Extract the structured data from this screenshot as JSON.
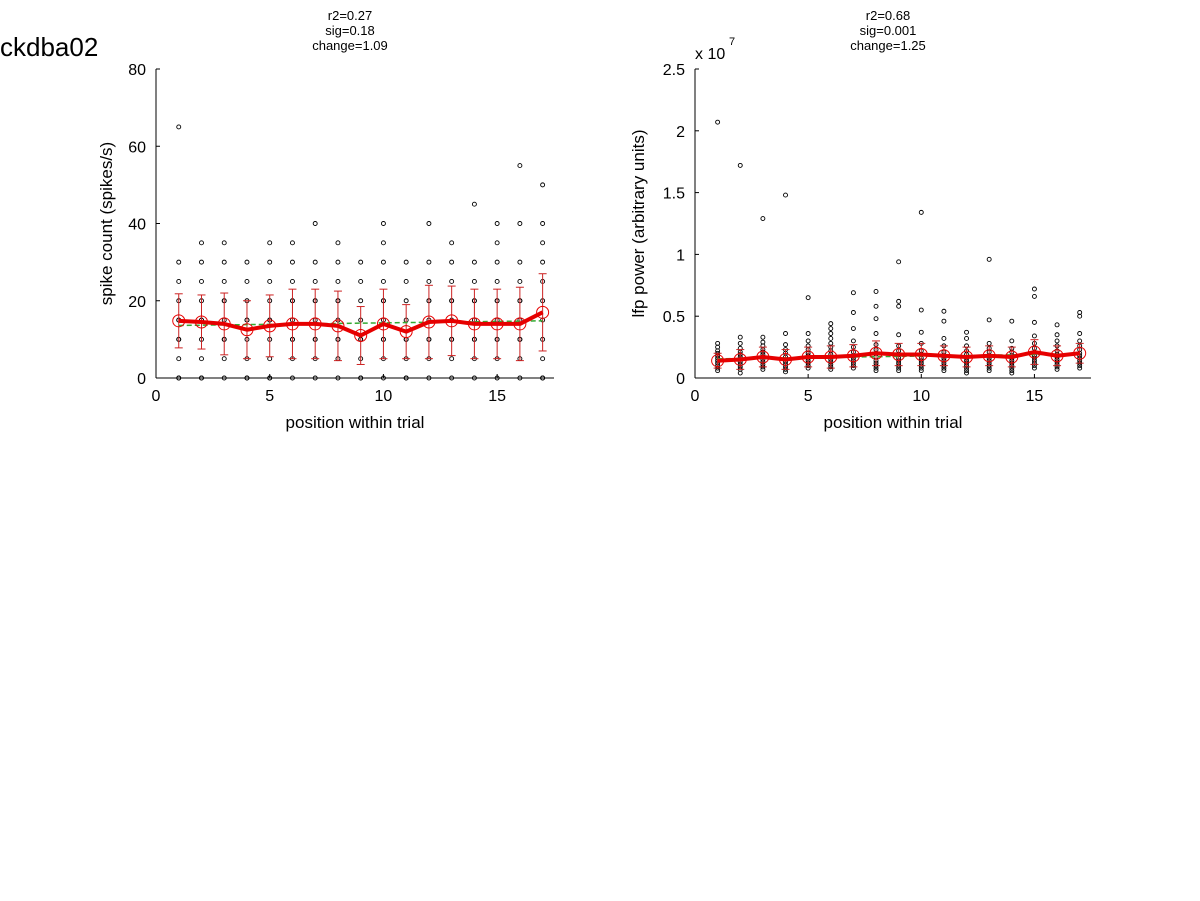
{
  "page_label": "ckdba02",
  "colors": {
    "mean_line": "#e60000",
    "mean_marker": "#e60000",
    "error_bar": "#cc2222",
    "fit_line": "#33aa33",
    "points": "#000000",
    "axis": "#000000"
  },
  "chart_data": [
    {
      "type": "scatter",
      "title_lines": [
        "r2=0.27",
        "sig=0.18",
        "change=1.09"
      ],
      "xlabel": "position within trial",
      "ylabel": "spike count (spikes/s)",
      "xlim": [
        0,
        17.5
      ],
      "ylim": [
        0,
        80
      ],
      "xticks": [
        0,
        5,
        10,
        15
      ],
      "xtick_labels": [
        "0",
        "5",
        "10",
        "15"
      ],
      "yticks": [
        0,
        20,
        40,
        60,
        80
      ],
      "ytick_labels": [
        "0",
        "20",
        "40",
        "60",
        "80"
      ],
      "exponent_label": "",
      "grid": false,
      "mean_series": {
        "x": [
          1,
          2,
          3,
          4,
          5,
          6,
          7,
          8,
          9,
          10,
          11,
          12,
          13,
          14,
          15,
          16,
          17
        ],
        "y": [
          14.8,
          14.5,
          14.0,
          12.5,
          13.5,
          14.0,
          14.0,
          13.5,
          11.0,
          14.0,
          12.0,
          14.5,
          14.8,
          14.0,
          14.0,
          14.0,
          17.0
        ],
        "err": [
          7.0,
          7.0,
          8.0,
          7.5,
          8.0,
          9.0,
          9.0,
          9.0,
          7.5,
          9.0,
          7.0,
          9.5,
          9.0,
          9.0,
          9.0,
          9.5,
          10.0
        ]
      },
      "fit_line": {
        "x": [
          1,
          17
        ],
        "y": [
          13.6,
          14.8
        ]
      },
      "points": {
        "x": [
          1,
          1,
          1,
          1,
          1,
          1,
          1,
          1,
          1,
          1,
          1,
          2,
          2,
          2,
          2,
          2,
          2,
          2,
          2,
          2,
          2,
          3,
          3,
          3,
          3,
          3,
          3,
          3,
          3,
          3,
          3,
          4,
          4,
          4,
          4,
          4,
          4,
          4,
          4,
          4,
          5,
          5,
          5,
          5,
          5,
          5,
          5,
          5,
          5,
          5,
          6,
          6,
          6,
          6,
          6,
          6,
          6,
          6,
          6,
          6,
          7,
          7,
          7,
          7,
          7,
          7,
          7,
          7,
          7,
          7,
          8,
          8,
          8,
          8,
          8,
          8,
          8,
          8,
          8,
          8,
          9,
          9,
          9,
          9,
          9,
          9,
          9,
          9,
          9,
          10,
          10,
          10,
          10,
          10,
          10,
          10,
          10,
          10,
          10,
          10,
          11,
          11,
          11,
          11,
          11,
          11,
          11,
          11,
          11,
          12,
          12,
          12,
          12,
          12,
          12,
          12,
          12,
          12,
          12,
          13,
          13,
          13,
          13,
          13,
          13,
          13,
          13,
          13,
          13,
          14,
          14,
          14,
          14,
          14,
          14,
          14,
          14,
          14,
          14,
          15,
          15,
          15,
          15,
          15,
          15,
          15,
          15,
          15,
          15,
          15,
          16,
          16,
          16,
          16,
          16,
          16,
          16,
          16,
          16,
          16,
          16,
          17,
          17,
          17,
          17,
          17,
          17,
          17,
          17,
          17,
          17,
          17
        ],
        "y": [
          0,
          5,
          10,
          15,
          20,
          25,
          30,
          65,
          0,
          10,
          15,
          0,
          5,
          10,
          15,
          20,
          25,
          30,
          35,
          0,
          15,
          0,
          5,
          10,
          15,
          20,
          25,
          30,
          35,
          10,
          20,
          0,
          5,
          10,
          15,
          20,
          25,
          30,
          0,
          15,
          0,
          5,
          10,
          15,
          20,
          25,
          30,
          35,
          0,
          15,
          0,
          5,
          10,
          15,
          20,
          25,
          30,
          35,
          10,
          20,
          0,
          5,
          10,
          15,
          20,
          25,
          30,
          40,
          10,
          20,
          0,
          5,
          10,
          15,
          20,
          25,
          30,
          35,
          10,
          20,
          0,
          5,
          10,
          15,
          20,
          25,
          30,
          0,
          10,
          0,
          5,
          10,
          15,
          20,
          25,
          30,
          35,
          40,
          10,
          20,
          0,
          5,
          10,
          15,
          20,
          25,
          30,
          0,
          10,
          0,
          5,
          10,
          15,
          20,
          25,
          30,
          40,
          10,
          20,
          0,
          5,
          10,
          15,
          20,
          25,
          30,
          35,
          10,
          20,
          0,
          5,
          10,
          15,
          20,
          25,
          30,
          45,
          10,
          20,
          0,
          5,
          10,
          15,
          20,
          25,
          30,
          35,
          40,
          10,
          20,
          0,
          5,
          10,
          15,
          20,
          25,
          30,
          40,
          55,
          10,
          20,
          0,
          5,
          10,
          15,
          20,
          25,
          30,
          35,
          40,
          50,
          0
        ]
      }
    },
    {
      "type": "scatter",
      "title_lines": [
        "r2=0.68",
        "sig=0.001",
        "change=1.25"
      ],
      "xlabel": "position within trial",
      "ylabel": "lfp power (arbitrary units)",
      "xlim": [
        0,
        17.5
      ],
      "ylim": [
        0,
        2.5
      ],
      "xticks": [
        0,
        5,
        10,
        15
      ],
      "xtick_labels": [
        "0",
        "5",
        "10",
        "15"
      ],
      "yticks": [
        0,
        0.5,
        1,
        1.5,
        2,
        2.5
      ],
      "ytick_labels": [
        "0",
        "0.5",
        "1",
        "1.5",
        "2",
        "2.5"
      ],
      "exponent_label": "x 10",
      "exponent_power": "7",
      "grid": false,
      "mean_series": {
        "x": [
          1,
          2,
          3,
          4,
          5,
          6,
          7,
          8,
          9,
          10,
          11,
          12,
          13,
          14,
          15,
          16,
          17
        ],
        "y": [
          0.14,
          0.15,
          0.17,
          0.15,
          0.17,
          0.17,
          0.18,
          0.2,
          0.19,
          0.19,
          0.18,
          0.17,
          0.18,
          0.17,
          0.21,
          0.18,
          0.2
        ],
        "err": [
          0.06,
          0.08,
          0.08,
          0.08,
          0.08,
          0.09,
          0.09,
          0.1,
          0.09,
          0.09,
          0.08,
          0.08,
          0.08,
          0.08,
          0.1,
          0.08,
          0.08
        ]
      },
      "fit_line": {
        "x": [
          1,
          17
        ],
        "y": [
          0.155,
          0.195
        ]
      },
      "points": {
        "x": [
          1,
          1,
          1,
          1,
          1,
          1,
          1,
          1,
          1,
          1,
          1,
          1,
          2,
          2,
          2,
          2,
          2,
          2,
          2,
          2,
          2,
          2,
          2,
          2,
          2,
          3,
          3,
          3,
          3,
          3,
          3,
          3,
          3,
          3,
          3,
          3,
          3,
          3,
          4,
          4,
          4,
          4,
          4,
          4,
          4,
          4,
          4,
          4,
          4,
          4,
          5,
          5,
          5,
          5,
          5,
          5,
          5,
          5,
          5,
          5,
          5,
          5,
          6,
          6,
          6,
          6,
          6,
          6,
          6,
          6,
          6,
          6,
          6,
          6,
          6,
          6,
          7,
          7,
          7,
          7,
          7,
          7,
          7,
          7,
          7,
          7,
          7,
          7,
          8,
          8,
          8,
          8,
          8,
          8,
          8,
          8,
          8,
          8,
          8,
          8,
          8,
          9,
          9,
          9,
          9,
          9,
          9,
          9,
          9,
          9,
          9,
          9,
          9,
          9,
          10,
          10,
          10,
          10,
          10,
          10,
          10,
          10,
          10,
          10,
          10,
          10,
          11,
          11,
          11,
          11,
          11,
          11,
          11,
          11,
          11,
          11,
          11,
          11,
          12,
          12,
          12,
          12,
          12,
          12,
          12,
          12,
          12,
          12,
          12,
          12,
          13,
          13,
          13,
          13,
          13,
          13,
          13,
          13,
          13,
          13,
          13,
          13,
          14,
          14,
          14,
          14,
          14,
          14,
          14,
          14,
          14,
          14,
          14,
          14,
          15,
          15,
          15,
          15,
          15,
          15,
          15,
          15,
          15,
          15,
          15,
          15,
          15,
          16,
          16,
          16,
          16,
          16,
          16,
          16,
          16,
          16,
          16,
          16,
          16,
          17,
          17,
          17,
          17,
          17,
          17,
          17,
          17,
          17,
          17,
          17,
          17,
          17
        ],
        "y": [
          0.06,
          0.08,
          0.1,
          0.12,
          0.14,
          0.16,
          0.18,
          0.2,
          0.22,
          0.25,
          0.28,
          2.07,
          0.04,
          0.07,
          0.09,
          0.11,
          0.13,
          0.15,
          0.17,
          0.19,
          0.21,
          0.24,
          0.28,
          0.33,
          1.72,
          0.07,
          0.09,
          0.11,
          0.13,
          0.15,
          0.17,
          0.19,
          0.21,
          0.23,
          0.26,
          0.29,
          0.33,
          1.29,
          0.05,
          0.07,
          0.09,
          0.11,
          0.13,
          0.15,
          0.17,
          0.2,
          0.23,
          0.27,
          0.36,
          1.48,
          0.08,
          0.1,
          0.12,
          0.14,
          0.16,
          0.18,
          0.2,
          0.23,
          0.26,
          0.3,
          0.36,
          0.65,
          0.07,
          0.09,
          0.11,
          0.13,
          0.15,
          0.17,
          0.19,
          0.22,
          0.25,
          0.28,
          0.32,
          0.36,
          0.4,
          0.44,
          0.08,
          0.1,
          0.12,
          0.14,
          0.16,
          0.18,
          0.21,
          0.25,
          0.3,
          0.4,
          0.53,
          0.69,
          0.06,
          0.08,
          0.1,
          0.12,
          0.14,
          0.17,
          0.2,
          0.23,
          0.27,
          0.36,
          0.48,
          0.58,
          0.7,
          0.06,
          0.08,
          0.1,
          0.12,
          0.14,
          0.16,
          0.19,
          0.22,
          0.26,
          0.35,
          0.58,
          0.62,
          0.94,
          0.06,
          0.08,
          0.1,
          0.12,
          0.14,
          0.16,
          0.19,
          0.22,
          0.28,
          0.37,
          0.55,
          1.34,
          0.06,
          0.08,
          0.1,
          0.12,
          0.14,
          0.16,
          0.18,
          0.21,
          0.26,
          0.32,
          0.46,
          0.54,
          0.04,
          0.06,
          0.08,
          0.1,
          0.12,
          0.14,
          0.16,
          0.19,
          0.22,
          0.26,
          0.32,
          0.37,
          0.06,
          0.08,
          0.1,
          0.12,
          0.14,
          0.16,
          0.18,
          0.21,
          0.24,
          0.28,
          0.47,
          0.96,
          0.04,
          0.06,
          0.08,
          0.1,
          0.12,
          0.14,
          0.16,
          0.18,
          0.21,
          0.24,
          0.3,
          0.46,
          0.08,
          0.1,
          0.12,
          0.14,
          0.16,
          0.18,
          0.21,
          0.24,
          0.28,
          0.34,
          0.45,
          0.66,
          0.72,
          0.07,
          0.09,
          0.11,
          0.13,
          0.15,
          0.17,
          0.19,
          0.22,
          0.26,
          0.3,
          0.35,
          0.43,
          0.08,
          0.1,
          0.12,
          0.14,
          0.16,
          0.18,
          0.2,
          0.23,
          0.26,
          0.3,
          0.36,
          0.5,
          0.53
        ]
      }
    }
  ]
}
